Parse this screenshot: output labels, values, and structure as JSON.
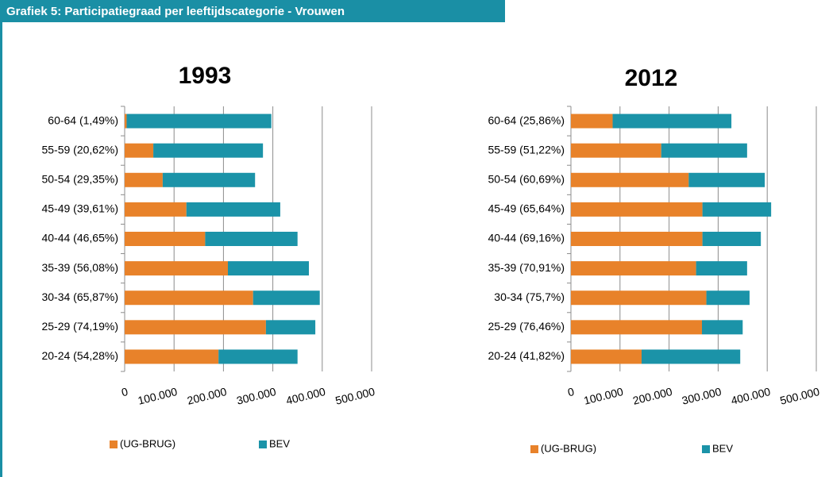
{
  "header": {
    "title": "Grafiek 5: Participatiegraad per leeftijdscategorie - Vrouwen"
  },
  "chart_data": [
    {
      "type": "bar",
      "orientation": "horizontal",
      "stacked": true,
      "title": "1993",
      "categories": [
        "60-64 (1,49%)",
        "55-59 (20,62%)",
        "50-54 (29,35%)",
        "45-49 (39,61%)",
        "40-44 (46,65%)",
        "35-39 (56,08%)",
        "30-34 (65,87%)",
        "25-29 (74,19%)",
        "20-24 (54,28%)"
      ],
      "series": [
        {
          "name": "(UG-BRUG)",
          "color": "#e8822a",
          "values": [
            4000,
            58000,
            77000,
            125000,
            163000,
            209000,
            260000,
            286000,
            190000
          ]
        },
        {
          "name": "BEV",
          "color": "#1b93a8",
          "values": [
            293000,
            222000,
            187000,
            190000,
            187000,
            164000,
            135000,
            100000,
            160000
          ]
        }
      ],
      "xlim": [
        0,
        500000
      ],
      "xticks": [
        0,
        {
          "value": 100000,
          "label": "100.000"
        },
        {
          "value": 200000,
          "label": "200.000"
        },
        {
          "value": 300000,
          "label": "300.000"
        },
        {
          "value": 400000,
          "label": "400.000"
        },
        {
          "value": 500000,
          "label": "500.000"
        }
      ],
      "grid": true,
      "legend": "bottom"
    },
    {
      "type": "bar",
      "orientation": "horizontal",
      "stacked": true,
      "title": "2012",
      "categories": [
        "60-64 (25,86%)",
        "55-59 (51,22%)",
        "50-54 (60,69%)",
        "45-49 (65,64%)",
        "40-44 (69,16%)",
        "35-39 (70,91%)",
        "30-34 (75,7%)",
        "25-29 (76,46%)",
        "20-24 (41,82%)"
      ],
      "series": [
        {
          "name": "(UG-BRUG)",
          "color": "#e8822a",
          "values": [
            85000,
            184000,
            240000,
            268000,
            268000,
            255000,
            276000,
            267000,
            144000
          ]
        },
        {
          "name": "BEV",
          "color": "#1b93a8",
          "values": [
            242000,
            175000,
            155000,
            140000,
            119000,
            104000,
            88000,
            83000,
            201000
          ]
        }
      ],
      "xlim": [
        0,
        500000
      ],
      "xticks": [
        0,
        {
          "value": 100000,
          "label": "100.000"
        },
        {
          "value": 200000,
          "label": "200.000"
        },
        {
          "value": 300000,
          "label": "300.000"
        },
        {
          "value": 400000,
          "label": "400.000"
        },
        {
          "value": 500000,
          "label": "500.000"
        }
      ],
      "grid": true,
      "legend": "bottom"
    }
  ]
}
